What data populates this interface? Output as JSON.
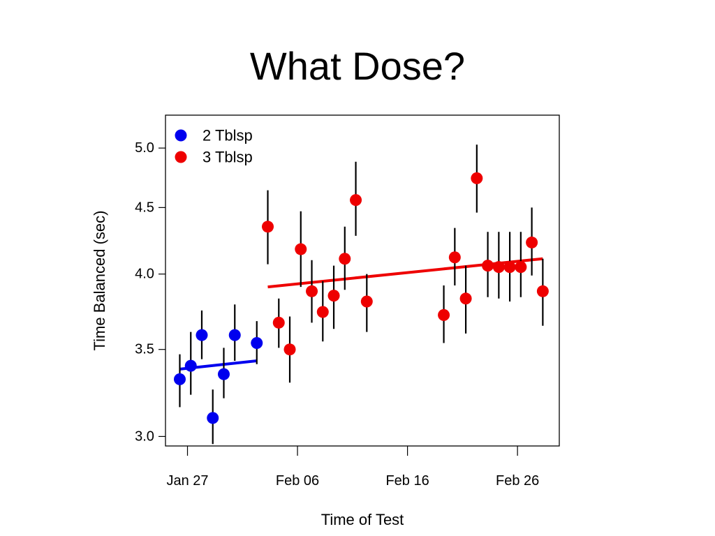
{
  "slide": {
    "title": "What Dose?"
  },
  "chart_data": {
    "type": "scatter",
    "xlabel": "Time of Test",
    "ylabel": "Time Balanced (sec)",
    "x_ticks": [
      {
        "label": "Jan 27",
        "day": 0
      },
      {
        "label": "Feb 06",
        "day": 10
      },
      {
        "label": "Feb 16",
        "day": 20
      },
      {
        "label": "Feb 26",
        "day": 30
      }
    ],
    "y_ticks": [
      "3.0",
      "3.5",
      "4.0",
      "4.5",
      "5.0"
    ],
    "y_scale": "log",
    "ylim": [
      2.95,
      5.3
    ],
    "xlim": [
      -2.0,
      33.8
    ],
    "grid": false,
    "legend_position": "top-left",
    "series": [
      {
        "name": "2 Tblsp",
        "color": "#0000ee",
        "points": [
          {
            "x": -0.7,
            "y": 3.32,
            "lo": 3.16,
            "hi": 3.47
          },
          {
            "x": 0.3,
            "y": 3.4,
            "lo": 3.23,
            "hi": 3.61
          },
          {
            "x": 1.3,
            "y": 3.59,
            "lo": 3.44,
            "hi": 3.75
          },
          {
            "x": 2.3,
            "y": 3.1,
            "lo": 2.96,
            "hi": 3.26
          },
          {
            "x": 3.3,
            "y": 3.35,
            "lo": 3.21,
            "hi": 3.51
          },
          {
            "x": 4.3,
            "y": 3.59,
            "lo": 3.43,
            "hi": 3.79
          },
          {
            "x": 6.3,
            "y": 3.54,
            "lo": 3.41,
            "hi": 3.68
          }
        ],
        "trend": {
          "x": [
            -0.7,
            6.3
          ],
          "y": [
            3.38,
            3.43
          ]
        }
      },
      {
        "name": "3 Tblsp",
        "color": "#ee0000",
        "points": [
          {
            "x": 7.3,
            "y": 4.35,
            "lo": 4.07,
            "hi": 4.64
          },
          {
            "x": 8.3,
            "y": 3.67,
            "lo": 3.51,
            "hi": 3.83
          },
          {
            "x": 9.3,
            "y": 3.5,
            "lo": 3.3,
            "hi": 3.71
          },
          {
            "x": 10.3,
            "y": 4.18,
            "lo": 3.91,
            "hi": 4.47
          },
          {
            "x": 11.3,
            "y": 3.88,
            "lo": 3.67,
            "hi": 4.1
          },
          {
            "x": 12.3,
            "y": 3.74,
            "lo": 3.55,
            "hi": 3.95
          },
          {
            "x": 13.3,
            "y": 3.85,
            "lo": 3.63,
            "hi": 4.06
          },
          {
            "x": 14.3,
            "y": 4.11,
            "lo": 3.89,
            "hi": 4.35
          },
          {
            "x": 15.3,
            "y": 4.56,
            "lo": 4.28,
            "hi": 4.88
          },
          {
            "x": 16.3,
            "y": 3.81,
            "lo": 3.61,
            "hi": 4.0
          },
          {
            "x": 23.3,
            "y": 3.72,
            "lo": 3.54,
            "hi": 3.92
          },
          {
            "x": 24.3,
            "y": 4.12,
            "lo": 3.92,
            "hi": 4.34
          },
          {
            "x": 25.3,
            "y": 3.83,
            "lo": 3.6,
            "hi": 4.06
          },
          {
            "x": 26.3,
            "y": 4.74,
            "lo": 4.46,
            "hi": 5.03
          },
          {
            "x": 27.3,
            "y": 4.06,
            "lo": 3.84,
            "hi": 4.31
          },
          {
            "x": 28.3,
            "y": 4.05,
            "lo": 3.83,
            "hi": 4.31
          },
          {
            "x": 29.3,
            "y": 4.05,
            "lo": 3.81,
            "hi": 4.31
          },
          {
            "x": 30.3,
            "y": 4.05,
            "lo": 3.84,
            "hi": 4.31
          },
          {
            "x": 31.3,
            "y": 4.23,
            "lo": 3.99,
            "hi": 4.5
          },
          {
            "x": 32.3,
            "y": 3.88,
            "lo": 3.65,
            "hi": 4.11
          }
        ],
        "trend": {
          "x": [
            7.3,
            32.3
          ],
          "y": [
            3.91,
            4.11
          ]
        }
      }
    ]
  }
}
